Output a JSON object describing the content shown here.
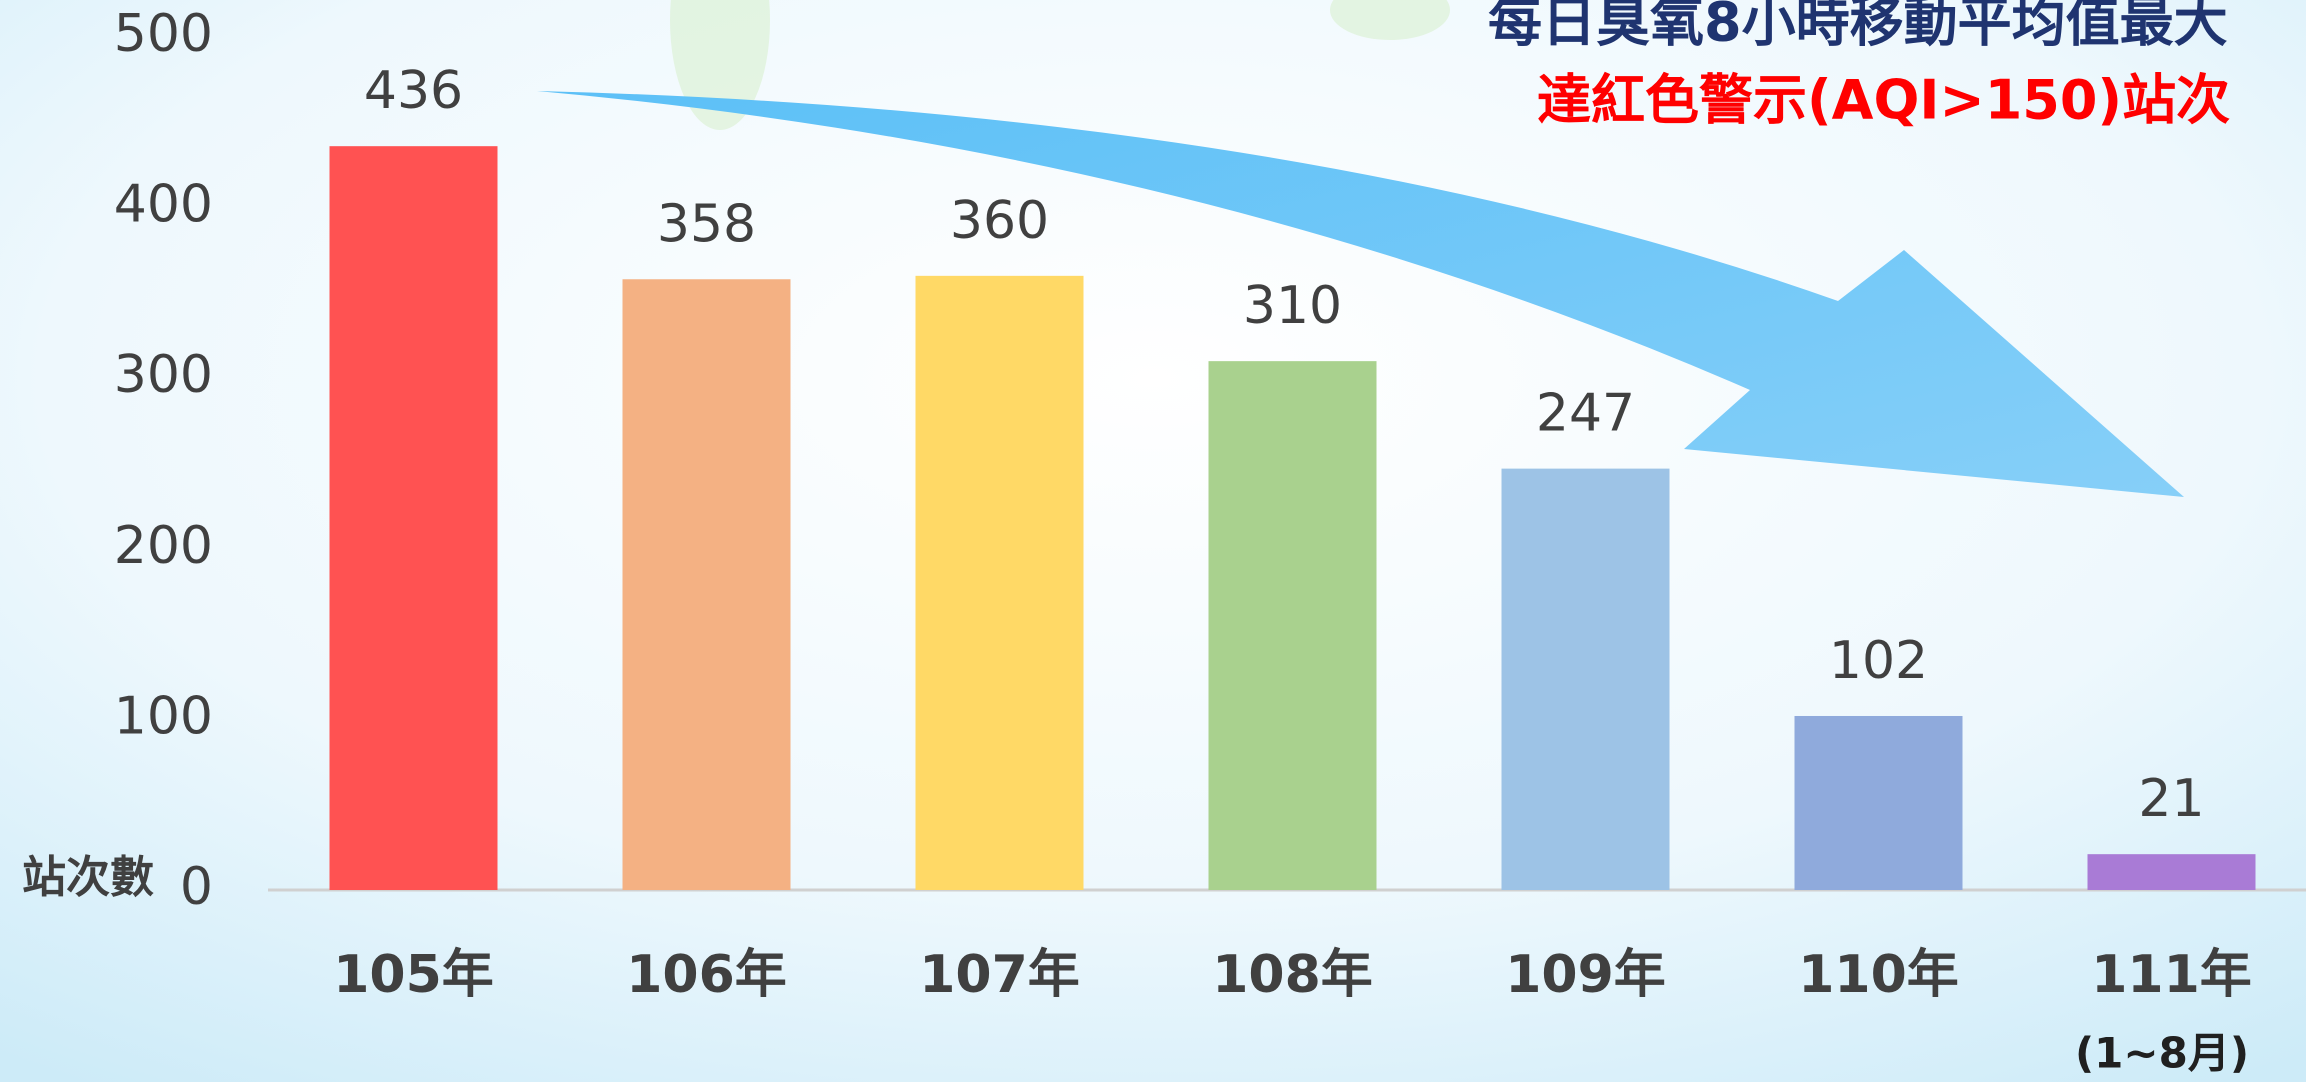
{
  "chart_data": {
    "type": "bar",
    "title": "每日臭氧8小時移動平均值最大",
    "subtitle": "達紅色警示(AQI>150)站次",
    "y_label": "站次數",
    "categories": [
      "105年",
      "106年",
      "107年",
      "108年",
      "109年",
      "110年",
      "111年"
    ],
    "annotation": "(1~8月)",
    "values": [
      436,
      358,
      360,
      310,
      247,
      102,
      21
    ],
    "colors": [
      "#ff5252",
      "#f4b183",
      "#ffd966",
      "#a9d18e",
      "#9dc3e6",
      "#8faadc",
      "#a97bd6"
    ],
    "ylim": [
      0,
      500
    ],
    "yticks": [
      0,
      100,
      200,
      300,
      400,
      500
    ],
    "grid": false
  }
}
